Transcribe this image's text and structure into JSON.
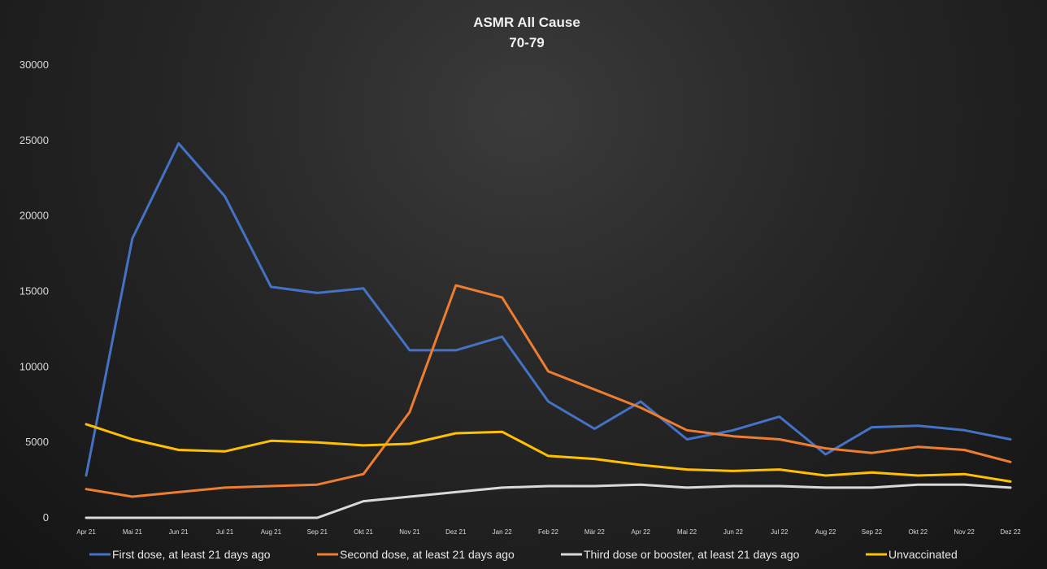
{
  "chart_data": {
    "type": "line",
    "title": "ASMR All Cause",
    "subtitle": "70-79",
    "xlabel": "",
    "ylabel": "",
    "ylim": [
      0,
      30000
    ],
    "yticks": [
      0,
      5000,
      10000,
      15000,
      20000,
      25000,
      30000
    ],
    "grid": false,
    "legend_position": "bottom",
    "categories": [
      "Apr 21",
      "Mai 21",
      "Jun 21",
      "Jul 21",
      "Aug 21",
      "Sep 21",
      "Okt 21",
      "Nov 21",
      "Dez 21",
      "Jan 22",
      "Feb 22",
      "Mär 22",
      "Apr 22",
      "Mai 22",
      "Jun 22",
      "Jul 22",
      "Aug 22",
      "Sep 22",
      "Okt 22",
      "Nov 22",
      "Dez 22"
    ],
    "series": [
      {
        "name": "First dose, at least 21 days ago",
        "color": "#4472c4",
        "values": [
          2800,
          18500,
          24800,
          21300,
          15300,
          14900,
          15200,
          11100,
          11100,
          12000,
          7700,
          5900,
          7700,
          5200,
          5800,
          6700,
          4200,
          6000,
          6100,
          5800,
          5200
        ]
      },
      {
        "name": "Second dose, at least 21 days ago",
        "color": "#ed7d31",
        "values": [
          1900,
          1400,
          1700,
          2000,
          2100,
          2200,
          2900,
          7000,
          15400,
          14600,
          9700,
          8500,
          7300,
          5800,
          5400,
          5200,
          4600,
          4300,
          4700,
          4500,
          3700
        ]
      },
      {
        "name": "Third dose or booster, at least 21 days ago",
        "color": "#d9d9d9",
        "values": [
          0,
          0,
          0,
          0,
          0,
          0,
          1100,
          1400,
          1700,
          2000,
          2100,
          2100,
          2200,
          2000,
          2100,
          2100,
          2000,
          2000,
          2200,
          2200,
          2000
        ]
      },
      {
        "name": "Unvaccinated",
        "color": "#ffc000",
        "values": [
          6200,
          5200,
          4500,
          4400,
          5100,
          5000,
          4800,
          4900,
          5600,
          5700,
          4100,
          3900,
          3500,
          3200,
          3100,
          3200,
          2800,
          3000,
          2800,
          2900,
          2400
        ]
      }
    ]
  }
}
